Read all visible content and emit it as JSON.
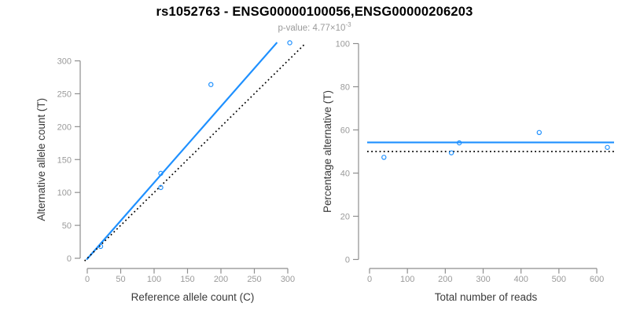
{
  "title": "rs1052763 - ENSG00000100056,ENSG00000206203",
  "subtitle": {
    "prefix": "p-value: 4.77×10",
    "exponent": "-3"
  },
  "colors": {
    "accent_blue": "#1E90FF",
    "axis_gray": "#8e8e8e",
    "tick_label_gray": "#9a9a9a",
    "axis_title_dark": "#3a3a3a",
    "dotted_black": "#000000",
    "subtitle_gray": "#9a9a9a",
    "point_blue": "#1E90FF"
  },
  "chart_data": [
    {
      "name": "allele-count-scatter",
      "type": "scatter",
      "xlabel": "Reference allele count (C)",
      "ylabel": "Alternative allele count (T)",
      "xticks": [
        0,
        50,
        100,
        150,
        200,
        250,
        300
      ],
      "yticks": [
        0,
        50,
        100,
        150,
        200,
        250,
        300
      ],
      "xlim": [
        0,
        325
      ],
      "ylim": [
        0,
        340
      ],
      "grid": false,
      "legend": "none",
      "points": [
        {
          "x": 20,
          "y": 18
        },
        {
          "x": 110,
          "y": 107.5
        },
        {
          "x": 110,
          "y": 129
        },
        {
          "x": 185,
          "y": 264
        },
        {
          "x": 303,
          "y": 327.5
        }
      ],
      "lines": [
        {
          "name": "fit-line",
          "style": "solid",
          "color_key": "accent_blue",
          "width": 2.2,
          "from": {
            "x": -1,
            "y": -2
          },
          "to": {
            "x": 284,
            "y": 328
          }
        },
        {
          "name": "identity-line",
          "style": "dotted",
          "color_key": "dotted_black",
          "width": 1.7,
          "from": {
            "x": -4,
            "y": -4
          },
          "to": {
            "x": 326,
            "y": 326
          }
        }
      ]
    },
    {
      "name": "percentage-vs-reads-scatter",
      "type": "scatter",
      "xlabel": "Total number of reads",
      "ylabel": "Percentage alternative (T)",
      "xticks": [
        0,
        100,
        200,
        300,
        400,
        500,
        600
      ],
      "yticks": [
        0,
        20,
        40,
        60,
        80,
        100
      ],
      "xlim": [
        0,
        650
      ],
      "ylim": [
        0,
        100
      ],
      "grid": false,
      "legend": "none",
      "points": [
        {
          "x": 38,
          "y": 47.3
        },
        {
          "x": 216,
          "y": 49.4
        },
        {
          "x": 237,
          "y": 54.0
        },
        {
          "x": 448,
          "y": 58.8
        },
        {
          "x": 628,
          "y": 51.9
        }
      ],
      "lines": [
        {
          "name": "mean-percentage-line",
          "style": "solid",
          "color_key": "accent_blue",
          "width": 2.2,
          "hvalue": 54.2
        },
        {
          "name": "null-50-percent-line",
          "style": "dotted",
          "color_key": "dotted_black",
          "width": 1.8,
          "hvalue": 50
        }
      ]
    }
  ]
}
